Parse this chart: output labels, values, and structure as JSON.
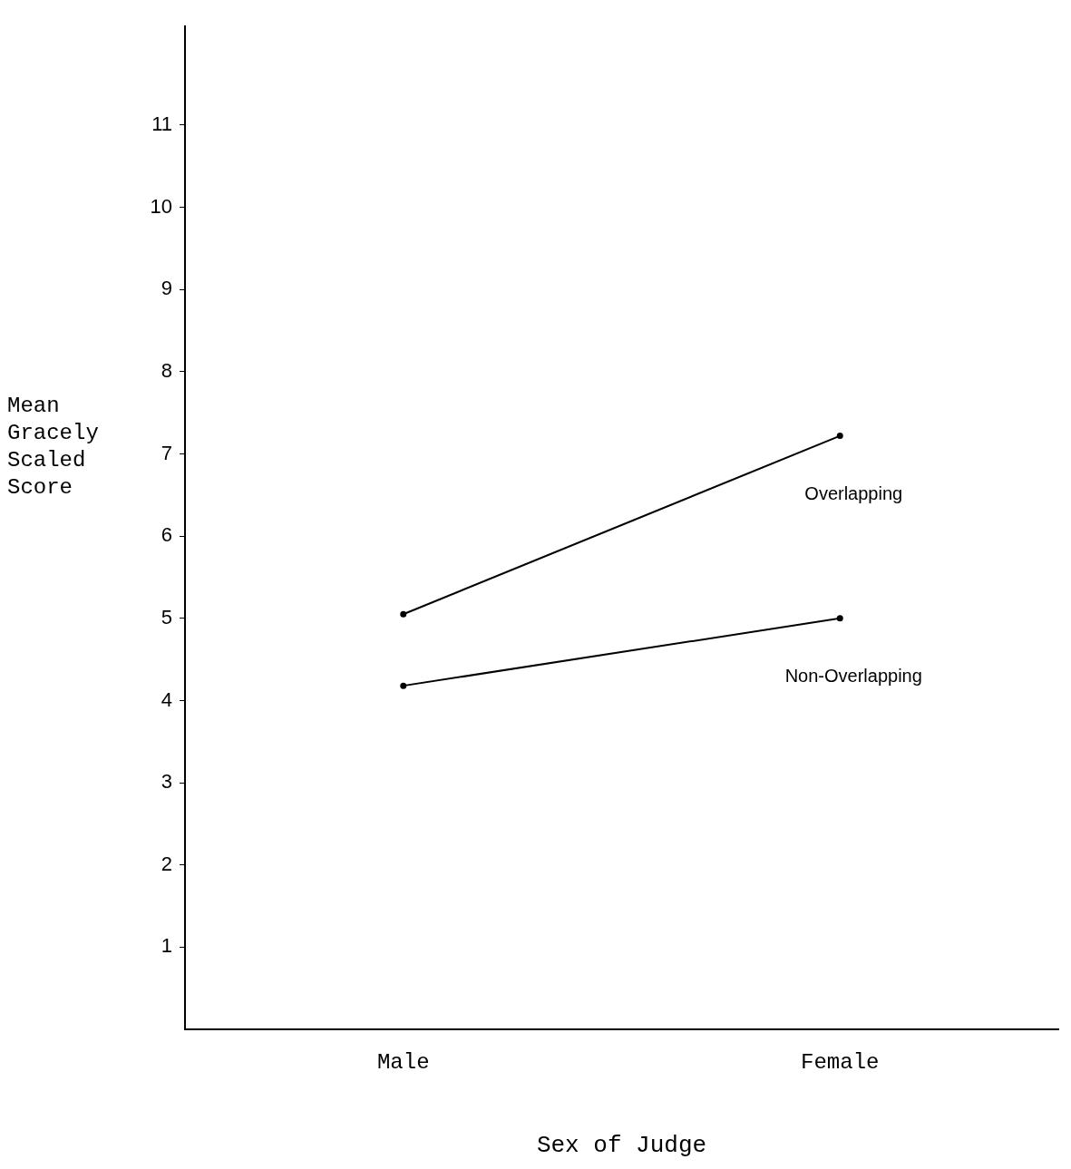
{
  "chart_data": {
    "type": "line",
    "xlabel": "Sex of Judge",
    "ylabel": "Mean Gracely Scaled Score",
    "categories": [
      "Male",
      "Female"
    ],
    "series": [
      {
        "name": "Overlapping",
        "color": "#000000",
        "values": [
          5.05,
          7.22
        ]
      },
      {
        "name": "Non-Overlapping",
        "color": "#000000",
        "values": [
          4.18,
          5.0
        ]
      }
    ],
    "ylim": [
      0,
      12.2
    ],
    "yticks": [
      1,
      2,
      3,
      4,
      5,
      6,
      7,
      8,
      9,
      10,
      11
    ],
    "grid": false,
    "legend": false,
    "marker": "circle",
    "line_style": "solid"
  }
}
